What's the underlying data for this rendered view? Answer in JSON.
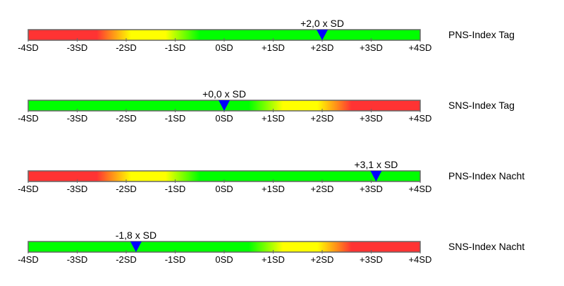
{
  "chart_data": {
    "type": "gauge-bars",
    "xlim": [
      -4,
      4
    ],
    "tick_values": [
      -4,
      -3,
      -2,
      -1,
      0,
      1,
      2,
      3,
      4
    ],
    "tick_labels": [
      "-4SD",
      "-3SD",
      "-2SD",
      "-1SD",
      "0SD",
      "+1SD",
      "+2SD",
      "+3SD",
      "+4SD"
    ],
    "colors": {
      "red": "#ff3333",
      "orange": "#ff8c1a",
      "yellow": "#ffff00",
      "green": "#00ff00",
      "marker": "#0000ff",
      "border": "#666666"
    },
    "gauges": [
      {
        "label": "PNS-Index Tag",
        "value": 2.0,
        "value_label": "+2,0 x SD",
        "scale": "red-to-green"
      },
      {
        "label": "SNS-Index Tag",
        "value": 0.0,
        "value_label": "+0,0 x SD",
        "scale": "green-to-red"
      },
      {
        "label": "PNS-Index Nacht",
        "value": 3.1,
        "value_label": "+3,1 x SD",
        "scale": "red-to-green"
      },
      {
        "label": "SNS-Index Nacht",
        "value": -1.8,
        "value_label": "-1,8 x SD",
        "scale": "green-to-red"
      }
    ]
  }
}
